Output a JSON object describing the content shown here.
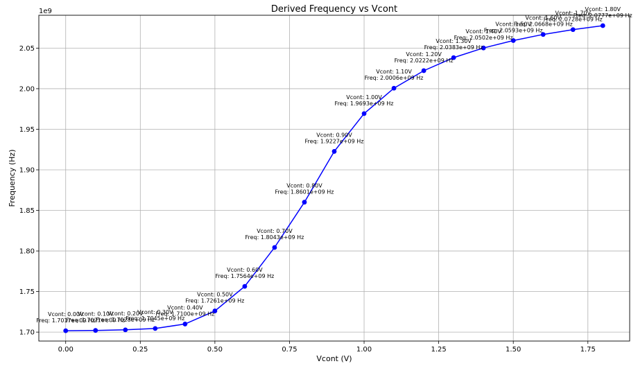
{
  "chart_data": {
    "type": "line",
    "title": "Derived Frequency vs Vcont",
    "xlabel": "Vcont (V)",
    "ylabel": "Frequency (Hz)",
    "y_offset_label": "1e9",
    "xlim": [
      -0.09,
      1.89
    ],
    "ylim": [
      1689000000.0,
      2090500000.0
    ],
    "grid": true,
    "line_color": "#0000ff",
    "x_ticks": [
      0.0,
      0.25,
      0.5,
      0.75,
      1.0,
      1.25,
      1.5,
      1.75
    ],
    "x_tick_labels": [
      "0.00",
      "0.25",
      "0.50",
      "0.75",
      "1.00",
      "1.25",
      "1.50",
      "1.75"
    ],
    "y_ticks": [
      1700000000.0,
      1750000000.0,
      1800000000.0,
      1850000000.0,
      1900000000.0,
      1950000000.0,
      2000000000.0,
      2050000000.0
    ],
    "y_tick_labels": [
      "1.70",
      "1.75",
      "1.80",
      "1.85",
      "1.90",
      "1.95",
      "2.00",
      "2.05"
    ],
    "x": [
      0.0,
      0.1,
      0.2,
      0.3,
      0.4,
      0.5,
      0.6,
      0.7,
      0.8,
      0.9,
      1.0,
      1.1,
      1.2,
      1.3,
      1.4,
      1.5,
      1.6,
      1.7,
      1.8
    ],
    "values": [
      1701700000.0,
      1702100000.0,
      1702800000.0,
      1704500000.0,
      1710000000.0,
      1726100000.0,
      1756400000.0,
      1804300000.0,
      1860100000.0,
      1922700000.0,
      1969300000.0,
      2000600000.0,
      2022200000.0,
      2038300000.0,
      2050200000.0,
      2059300000.0,
      2066800000.0,
      2072800000.0,
      2077700000.0
    ],
    "annotations": [
      {
        "line1": "Vcont: 0.00V",
        "line2": "Freq: 1.7017e+09 Hz"
      },
      {
        "line1": "Vcont: 0.10V",
        "line2": "Freq: 1.7021e+09 Hz"
      },
      {
        "line1": "Vcont: 0.20V",
        "line2": "Freq: 1.7028e+09 Hz"
      },
      {
        "line1": "Vcont: 0.30V",
        "line2": "Freq: 1.7045e+09 Hz"
      },
      {
        "line1": "Vcont: 0.40V",
        "line2": "Freq: 1.7100e+09 Hz"
      },
      {
        "line1": "Vcont: 0.50V",
        "line2": "Freq: 1.7261e+09 Hz"
      },
      {
        "line1": "Vcont: 0.60V",
        "line2": "Freq: 1.7564e+09 Hz"
      },
      {
        "line1": "Vcont: 0.70V",
        "line2": "Freq: 1.8043e+09 Hz"
      },
      {
        "line1": "Vcont: 0.80V",
        "line2": "Freq: 1.8601e+09 Hz"
      },
      {
        "line1": "Vcont: 0.90V",
        "line2": "Freq: 1.9227e+09 Hz"
      },
      {
        "line1": "Vcont: 1.00V",
        "line2": "Freq: 1.9693e+09 Hz"
      },
      {
        "line1": "Vcont: 1.10V",
        "line2": "Freq: 2.0006e+09 Hz"
      },
      {
        "line1": "Vcont: 1.20V",
        "line2": "Freq: 2.0222e+09 Hz"
      },
      {
        "line1": "Vcont: 1.30V",
        "line2": "Freq: 2.0383e+09 Hz"
      },
      {
        "line1": "Vcont: 1.40V",
        "line2": "Freq: 2.0502e+09 Hz"
      },
      {
        "line1": "Vcont: 1.50V",
        "line2": "Freq: 2.0593e+09 Hz"
      },
      {
        "line1": "Vcont: 1.60V",
        "line2": "Freq: 2.0668e+09 Hz"
      },
      {
        "line1": "Vcont: 1.70V",
        "line2": "Freq: 2.0728e+09 Hz"
      },
      {
        "line1": "Vcont: 1.80V",
        "line2": "Freq: 2.0777e+09 Hz"
      }
    ]
  }
}
